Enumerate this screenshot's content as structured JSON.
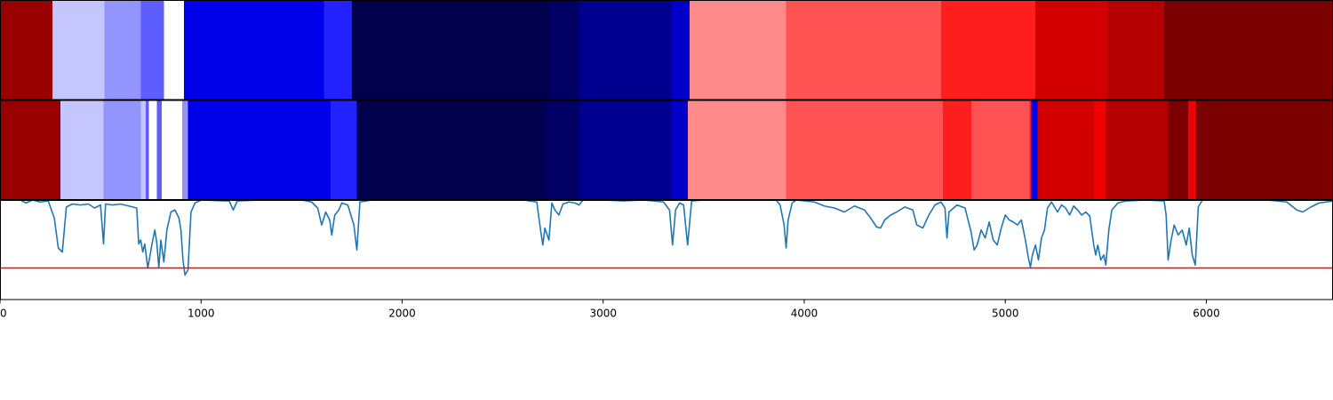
{
  "chart_data": {
    "type": "heatmap",
    "x_range": [
      0,
      6630
    ],
    "x_ticks": [
      {
        "value": 0,
        "label": "0"
      },
      {
        "value": 1000,
        "label": "1000"
      },
      {
        "value": 2000,
        "label": "2000"
      },
      {
        "value": 3000,
        "label": "3000"
      },
      {
        "value": 4000,
        "label": "4000"
      },
      {
        "value": 5000,
        "label": "5000"
      },
      {
        "value": 6000,
        "label": "6000"
      }
    ],
    "colormap": "seismic",
    "segment_rows": [
      {
        "name": "",
        "segments": [
          {
            "start": 0,
            "end": 260,
            "color": "#990000"
          },
          {
            "start": 260,
            "end": 520,
            "color": "#c6c6ff"
          },
          {
            "start": 520,
            "end": 700,
            "color": "#9494ff"
          },
          {
            "start": 700,
            "end": 815,
            "color": "#5e5eff"
          },
          {
            "start": 815,
            "end": 915,
            "color": "#ffffff"
          },
          {
            "start": 915,
            "end": 1610,
            "color": "#0000e9"
          },
          {
            "start": 1610,
            "end": 1750,
            "color": "#2222ff"
          },
          {
            "start": 1750,
            "end": 2730,
            "color": "#00004d"
          },
          {
            "start": 2730,
            "end": 2880,
            "color": "#000064"
          },
          {
            "start": 2880,
            "end": 3340,
            "color": "#00008f"
          },
          {
            "start": 3340,
            "end": 3430,
            "color": "#0000c8"
          },
          {
            "start": 3430,
            "end": 3910,
            "color": "#ff8a8a"
          },
          {
            "start": 3910,
            "end": 4680,
            "color": "#ff5252"
          },
          {
            "start": 4680,
            "end": 5150,
            "color": "#ff1e1e"
          },
          {
            "start": 5150,
            "end": 5510,
            "color": "#d20000"
          },
          {
            "start": 5510,
            "end": 5790,
            "color": "#b40000"
          },
          {
            "start": 5790,
            "end": 6630,
            "color": "#7d0000"
          }
        ]
      },
      {
        "name": "",
        "segments": [
          {
            "start": 0,
            "end": 300,
            "color": "#990000"
          },
          {
            "start": 300,
            "end": 515,
            "color": "#c6c6ff"
          },
          {
            "start": 515,
            "end": 700,
            "color": "#9494ff"
          },
          {
            "start": 700,
            "end": 725,
            "color": "#c6c6ff"
          },
          {
            "start": 725,
            "end": 740,
            "color": "#5e5eff"
          },
          {
            "start": 740,
            "end": 780,
            "color": "#ffffff"
          },
          {
            "start": 780,
            "end": 805,
            "color": "#5e5eff"
          },
          {
            "start": 805,
            "end": 905,
            "color": "#ffffff"
          },
          {
            "start": 905,
            "end": 935,
            "color": "#9494ff"
          },
          {
            "start": 935,
            "end": 1645,
            "color": "#0000e9"
          },
          {
            "start": 1645,
            "end": 1775,
            "color": "#2222ff"
          },
          {
            "start": 1775,
            "end": 2710,
            "color": "#00004d"
          },
          {
            "start": 2710,
            "end": 2880,
            "color": "#000064"
          },
          {
            "start": 2880,
            "end": 3340,
            "color": "#00008f"
          },
          {
            "start": 3340,
            "end": 3420,
            "color": "#0000c8"
          },
          {
            "start": 3420,
            "end": 3910,
            "color": "#ff8a8a"
          },
          {
            "start": 3910,
            "end": 4690,
            "color": "#ff5252"
          },
          {
            "start": 4690,
            "end": 4830,
            "color": "#ff1e1e"
          },
          {
            "start": 4830,
            "end": 5120,
            "color": "#ff5252"
          },
          {
            "start": 5120,
            "end": 5130,
            "color": "#ff1e1e"
          },
          {
            "start": 5130,
            "end": 5160,
            "color": "#0000e9"
          },
          {
            "start": 5160,
            "end": 5440,
            "color": "#d20000"
          },
          {
            "start": 5440,
            "end": 5500,
            "color": "#f00000"
          },
          {
            "start": 5500,
            "end": 5810,
            "color": "#b40000"
          },
          {
            "start": 5810,
            "end": 5910,
            "color": "#7d0000"
          },
          {
            "start": 5910,
            "end": 5950,
            "color": "#ee0000"
          },
          {
            "start": 5950,
            "end": 6630,
            "color": "#7d0000"
          }
        ]
      }
    ],
    "line_panel": {
      "y_range": [
        0,
        1
      ],
      "line_color": "#1f77b4",
      "threshold": 0.32,
      "threshold_color": "#ff0000",
      "series": {
        "name": "",
        "points": [
          [
            0,
            1.0
          ],
          [
            100,
            1.0
          ],
          [
            130,
            0.97
          ],
          [
            160,
            1.0
          ],
          [
            200,
            0.98
          ],
          [
            240,
            0.99
          ],
          [
            270,
            0.82
          ],
          [
            290,
            0.52
          ],
          [
            310,
            0.48
          ],
          [
            330,
            0.93
          ],
          [
            360,
            0.96
          ],
          [
            400,
            0.95
          ],
          [
            440,
            0.96
          ],
          [
            470,
            0.92
          ],
          [
            500,
            0.95
          ],
          [
            515,
            0.56
          ],
          [
            525,
            0.96
          ],
          [
            560,
            0.95
          ],
          [
            600,
            0.96
          ],
          [
            640,
            0.94
          ],
          [
            680,
            0.92
          ],
          [
            690,
            0.56
          ],
          [
            700,
            0.6
          ],
          [
            710,
            0.48
          ],
          [
            720,
            0.56
          ],
          [
            735,
            0.32
          ],
          [
            745,
            0.43
          ],
          [
            755,
            0.55
          ],
          [
            770,
            0.7
          ],
          [
            780,
            0.57
          ],
          [
            790,
            0.32
          ],
          [
            800,
            0.6
          ],
          [
            815,
            0.38
          ],
          [
            830,
            0.7
          ],
          [
            850,
            0.88
          ],
          [
            870,
            0.9
          ],
          [
            890,
            0.82
          ],
          [
            900,
            0.7
          ],
          [
            910,
            0.4
          ],
          [
            920,
            0.25
          ],
          [
            935,
            0.3
          ],
          [
            950,
            0.88
          ],
          [
            970,
            0.97
          ],
          [
            1000,
            1.0
          ],
          [
            1140,
            0.99
          ],
          [
            1160,
            0.9
          ],
          [
            1180,
            0.99
          ],
          [
            1300,
            1.0
          ],
          [
            1500,
            1.0
          ],
          [
            1550,
            0.98
          ],
          [
            1580,
            0.92
          ],
          [
            1600,
            0.75
          ],
          [
            1620,
            0.88
          ],
          [
            1640,
            0.8
          ],
          [
            1650,
            0.65
          ],
          [
            1665,
            0.85
          ],
          [
            1685,
            0.9
          ],
          [
            1700,
            0.97
          ],
          [
            1730,
            0.95
          ],
          [
            1760,
            0.75
          ],
          [
            1775,
            0.5
          ],
          [
            1790,
            0.98
          ],
          [
            1850,
            1.0
          ],
          [
            2000,
            1.0
          ],
          [
            2300,
            1.0
          ],
          [
            2600,
            1.0
          ],
          [
            2670,
            0.98
          ],
          [
            2690,
            0.68
          ],
          [
            2700,
            0.55
          ],
          [
            2710,
            0.72
          ],
          [
            2730,
            0.6
          ],
          [
            2745,
            0.97
          ],
          [
            2760,
            0.9
          ],
          [
            2780,
            0.85
          ],
          [
            2800,
            0.96
          ],
          [
            2830,
            0.98
          ],
          [
            2860,
            0.97
          ],
          [
            2880,
            0.95
          ],
          [
            2900,
            1.0
          ],
          [
            3000,
            1.0
          ],
          [
            3100,
            0.99
          ],
          [
            3200,
            1.0
          ],
          [
            3300,
            0.98
          ],
          [
            3330,
            0.9
          ],
          [
            3345,
            0.55
          ],
          [
            3360,
            0.9
          ],
          [
            3380,
            0.97
          ],
          [
            3400,
            0.95
          ],
          [
            3420,
            0.55
          ],
          [
            3440,
            0.99
          ],
          [
            3500,
            1.0
          ],
          [
            3700,
            1.0
          ],
          [
            3860,
            1.0
          ],
          [
            3880,
            0.95
          ],
          [
            3900,
            0.75
          ],
          [
            3910,
            0.52
          ],
          [
            3920,
            0.8
          ],
          [
            3940,
            0.97
          ],
          [
            3960,
            1.0
          ],
          [
            4050,
            0.98
          ],
          [
            4100,
            0.94
          ],
          [
            4150,
            0.92
          ],
          [
            4200,
            0.88
          ],
          [
            4250,
            0.94
          ],
          [
            4300,
            0.9
          ],
          [
            4330,
            0.82
          ],
          [
            4360,
            0.73
          ],
          [
            4380,
            0.72
          ],
          [
            4400,
            0.8
          ],
          [
            4430,
            0.85
          ],
          [
            4460,
            0.88
          ],
          [
            4500,
            0.93
          ],
          [
            4540,
            0.9
          ],
          [
            4560,
            0.75
          ],
          [
            4590,
            0.72
          ],
          [
            4620,
            0.85
          ],
          [
            4650,
            0.95
          ],
          [
            4680,
            0.98
          ],
          [
            4700,
            0.92
          ],
          [
            4710,
            0.62
          ],
          [
            4720,
            0.88
          ],
          [
            4760,
            0.95
          ],
          [
            4800,
            0.92
          ],
          [
            4830,
            0.68
          ],
          [
            4845,
            0.5
          ],
          [
            4860,
            0.55
          ],
          [
            4880,
            0.7
          ],
          [
            4900,
            0.62
          ],
          [
            4920,
            0.78
          ],
          [
            4940,
            0.6
          ],
          [
            4960,
            0.55
          ],
          [
            4980,
            0.72
          ],
          [
            5000,
            0.85
          ],
          [
            5020,
            0.8
          ],
          [
            5040,
            0.78
          ],
          [
            5060,
            0.75
          ],
          [
            5080,
            0.8
          ],
          [
            5100,
            0.6
          ],
          [
            5115,
            0.42
          ],
          [
            5125,
            0.33
          ],
          [
            5135,
            0.45
          ],
          [
            5150,
            0.55
          ],
          [
            5165,
            0.4
          ],
          [
            5180,
            0.62
          ],
          [
            5195,
            0.7
          ],
          [
            5210,
            0.92
          ],
          [
            5230,
            0.98
          ],
          [
            5260,
            0.88
          ],
          [
            5280,
            0.95
          ],
          [
            5300,
            0.92
          ],
          [
            5320,
            0.85
          ],
          [
            5340,
            0.94
          ],
          [
            5360,
            0.9
          ],
          [
            5380,
            0.85
          ],
          [
            5400,
            0.88
          ],
          [
            5420,
            0.84
          ],
          [
            5440,
            0.55
          ],
          [
            5450,
            0.45
          ],
          [
            5460,
            0.55
          ],
          [
            5475,
            0.4
          ],
          [
            5490,
            0.45
          ],
          [
            5500,
            0.35
          ],
          [
            5515,
            0.7
          ],
          [
            5530,
            0.9
          ],
          [
            5560,
            0.97
          ],
          [
            5600,
            0.99
          ],
          [
            5700,
            1.0
          ],
          [
            5790,
            0.99
          ],
          [
            5800,
            0.85
          ],
          [
            5810,
            0.4
          ],
          [
            5825,
            0.6
          ],
          [
            5840,
            0.75
          ],
          [
            5860,
            0.65
          ],
          [
            5880,
            0.7
          ],
          [
            5900,
            0.55
          ],
          [
            5915,
            0.72
          ],
          [
            5930,
            0.45
          ],
          [
            5945,
            0.35
          ],
          [
            5960,
            0.93
          ],
          [
            5980,
            1.0
          ],
          [
            6100,
            1.0
          ],
          [
            6300,
            1.0
          ],
          [
            6400,
            0.98
          ],
          [
            6450,
            0.9
          ],
          [
            6480,
            0.88
          ],
          [
            6520,
            0.93
          ],
          [
            6560,
            0.97
          ],
          [
            6630,
            0.99
          ]
        ]
      }
    }
  }
}
